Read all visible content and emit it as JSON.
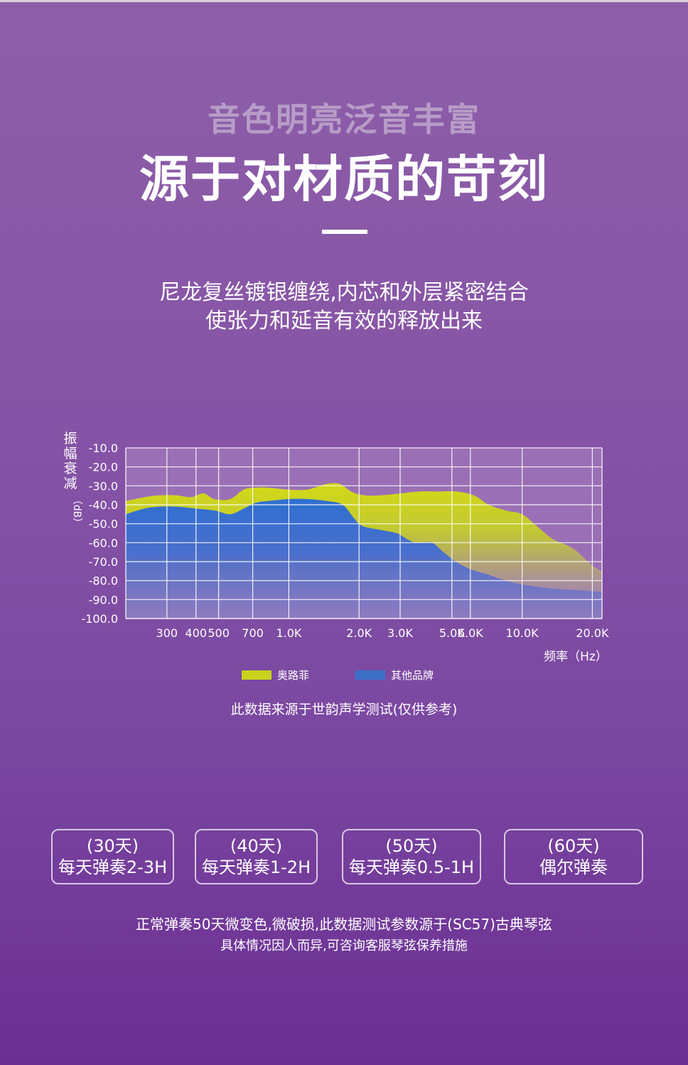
{
  "header": {
    "subtitle": "音色明亮泛音丰富",
    "title": "源于对材质的苛刻",
    "description_line1": "尼龙复丝镀银缠绕,内芯和外层紧密结合",
    "description_line2": "使张力和延音有效的释放出来"
  },
  "chart_data": {
    "type": "area",
    "ylabel_chars": [
      "振",
      "幅",
      "衰",
      "减"
    ],
    "ylabel_unit": "（dB）",
    "xlabel": "频率（Hz）",
    "yticks": [
      "-10.0",
      "-20.0",
      "-30.0",
      "-40.0",
      "-50.0",
      "-60.0",
      "-70.0",
      "-80.0",
      "-90.0",
      "-100.0"
    ],
    "ylim": [
      -100,
      -10
    ],
    "xscale": "log",
    "xlim": [
      200,
      22000
    ],
    "xticks": [
      {
        "value": 300,
        "label": "300"
      },
      {
        "value": 400,
        "label": "400"
      },
      {
        "value": 500,
        "label": "500"
      },
      {
        "value": 700,
        "label": "700"
      },
      {
        "value": 1000,
        "label": "1.0K"
      },
      {
        "value": 2000,
        "label": "2.0K"
      },
      {
        "value": 3000,
        "label": "3.0K"
      },
      {
        "value": 5000,
        "label": "5.0K"
      },
      {
        "value": 6000,
        "label": "6.0K"
      },
      {
        "value": 10000,
        "label": "10.0K"
      },
      {
        "value": 20000,
        "label": "20.0K"
      }
    ],
    "grid": true,
    "series": [
      {
        "name": "奥路菲",
        "color": "#c9d31c",
        "x": [
          200,
          240,
          280,
          330,
          380,
          430,
          480,
          560,
          640,
          720,
          820,
          1000,
          1200,
          1450,
          1650,
          1850,
          2100,
          2500,
          3000,
          3600,
          4300,
          5200,
          6200,
          7200,
          8500,
          10000,
          11500,
          13500,
          16500,
          20000,
          22000
        ],
        "y": [
          -38,
          -36,
          -35,
          -35,
          -36,
          -34,
          -37,
          -37,
          -32,
          -31,
          -31,
          -32,
          -32,
          -29,
          -29,
          -33,
          -35,
          -35,
          -34,
          -33,
          -33,
          -33,
          -35,
          -40,
          -43,
          -45,
          -51,
          -58,
          -63,
          -72,
          -75
        ]
      },
      {
        "name": "其他品牌",
        "color": "#3a70c8",
        "x": [
          200,
          240,
          280,
          330,
          400,
          480,
          560,
          640,
          720,
          820,
          1000,
          1200,
          1450,
          1700,
          1900,
          2050,
          2400,
          2900,
          3200,
          3500,
          4100,
          4600,
          5200,
          6000,
          7200,
          8500,
          10000,
          13000,
          17000,
          22000
        ],
        "y": [
          -45,
          -42,
          -41,
          -41,
          -42,
          -43,
          -45,
          -42,
          -39,
          -38,
          -37,
          -37,
          -38,
          -40,
          -47,
          -51,
          -53,
          -55,
          -58,
          -60,
          -60,
          -65,
          -70,
          -74,
          -77,
          -80,
          -82,
          -84,
          -85,
          -86
        ]
      }
    ]
  },
  "source_note": "此数据来源于世韵声学测试(仅供参考)",
  "plans": [
    {
      "days": "(30天)",
      "desc": "每天弹奏2-3H"
    },
    {
      "days": "(40天)",
      "desc": "每天弹奏1-2H"
    },
    {
      "days": "(50天)",
      "desc": "每天弹奏0.5-1H"
    },
    {
      "days": "(60天)",
      "desc": "偶尔弹奏"
    }
  ],
  "footer": {
    "line1": "正常弹奏50天微变色,微破损,此数据测试参数源于(SC57)古典琴弦",
    "line2": "具体情况因人而异,可咨询客服琴弦保养措施"
  }
}
